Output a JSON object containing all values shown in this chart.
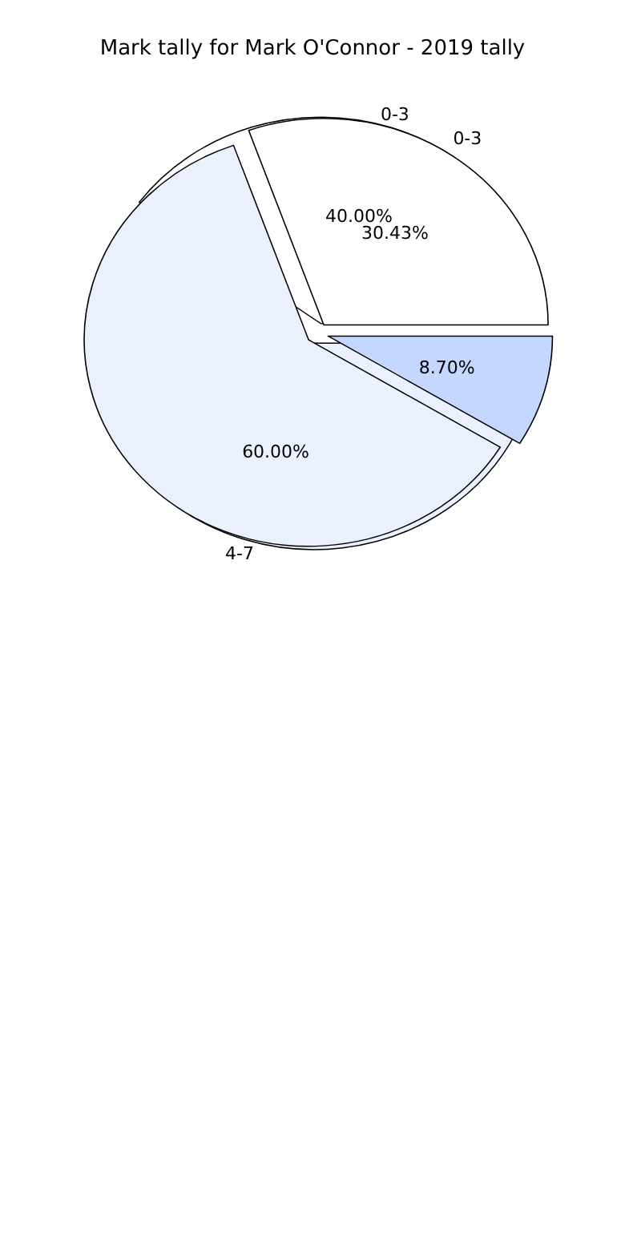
{
  "chart_data": [
    {
      "type": "pie",
      "title": "Mark tally for Mark O'Connor - 2019 tally",
      "categories": [
        "0-3",
        "4-7"
      ],
      "values": [
        40,
        60
      ],
      "colors": [
        "#ffffff",
        "#eaf0fd"
      ],
      "value_labels": [
        "40.00%",
        "60.00%"
      ]
    },
    {
      "type": "pie",
      "categories": [
        "0-3",
        null,
        null
      ],
      "values": [
        30.43,
        60.87,
        8.7
      ],
      "colors": [
        "#ffffff",
        "#eaf0fd",
        "#c5d7fe"
      ],
      "value_labels": [
        "30.43%",
        null,
        "8.70%"
      ]
    }
  ]
}
